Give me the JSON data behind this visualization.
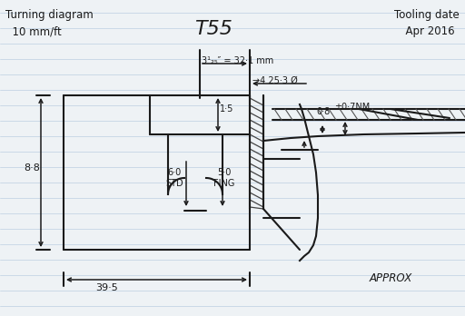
{
  "title_left": "Turning diagram\n  10 mm/ft",
  "title_right": "Tooling date\n  Apr 2016",
  "part_label": "T55",
  "dim_32mm": "3¹₂₅″ = 32·1 mm",
  "dim_25": "→4 25·3 Ø",
  "dim_08": "0·8",
  "dim_07nm": "±0·7NM",
  "dim_15": "1·5",
  "dim_60std": "6·0\nSTD",
  "dim_50fing": "5·0\nFING",
  "dim_88": "8·8",
  "dim_395": "39·5",
  "approx": "APPROX",
  "bg_color": "#eef2f5",
  "line_color": "#1a1a1a",
  "ruled_color": "#c5d5e5",
  "hatch_color": "#333333",
  "dim_color": "#1a1a1a"
}
